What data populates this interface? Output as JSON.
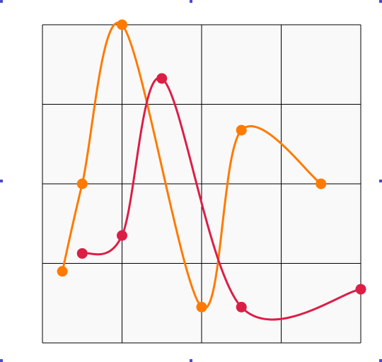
{
  "chart_data": {
    "type": "line",
    "xlim": [
      0,
      8
    ],
    "ylim": [
      0,
      8
    ],
    "grid": true,
    "series": [
      {
        "color": "#ff7a00",
        "points": [
          [
            0.5,
            1.8
          ],
          [
            1.0,
            4.0
          ],
          [
            2.0,
            8.0
          ],
          [
            4.0,
            0.9
          ],
          [
            5.0,
            5.35
          ],
          [
            7.0,
            4.0
          ]
        ]
      },
      {
        "color": "#dc1e46",
        "points": [
          [
            1.0,
            2.25
          ],
          [
            2.0,
            2.7
          ],
          [
            3.0,
            6.65
          ],
          [
            5.0,
            0.9
          ],
          [
            8.0,
            1.35
          ]
        ]
      }
    ]
  },
  "colors": {
    "plot_background": "#f9f9f9",
    "grid": "#000000",
    "selection_handles": "#4a4acc"
  }
}
